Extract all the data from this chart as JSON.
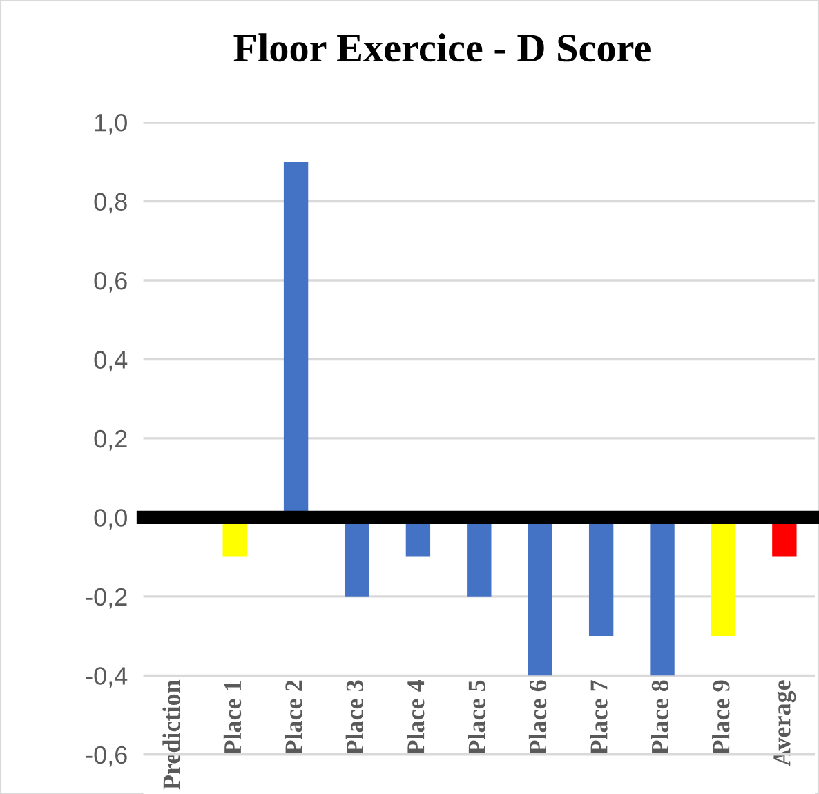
{
  "chart_data": {
    "type": "bar",
    "title": "Floor Exercice - D Score",
    "categories": [
      "Prediction",
      "Place 1",
      "Place 2",
      "Place 3",
      "Place 4",
      "Place 5",
      "Place 6",
      "Place 7",
      "Place 8",
      "Place 9",
      "Average"
    ],
    "values": [
      null,
      -0.1,
      0.9,
      -0.2,
      -0.1,
      -0.2,
      -0.4,
      -0.3,
      -0.4,
      -0.3,
      -0.1
    ],
    "colors": [
      "#4472c4",
      "#ffff00",
      "#4472c4",
      "#4472c4",
      "#4472c4",
      "#4472c4",
      "#4472c4",
      "#4472c4",
      "#4472c4",
      "#ffff00",
      "#ff0000"
    ],
    "ylim": [
      -0.7,
      1.0
    ],
    "yticks": [
      {
        "value": -0.6,
        "label": "-0,6"
      },
      {
        "value": -0.4,
        "label": "-0,4"
      },
      {
        "value": -0.2,
        "label": "-0,2"
      },
      {
        "value": 0.0,
        "label": "0,0"
      },
      {
        "value": 0.2,
        "label": "0,2"
      },
      {
        "value": 0.4,
        "label": "0,4"
      },
      {
        "value": 0.6,
        "label": "0,6"
      },
      {
        "value": 0.8,
        "label": "0,8"
      },
      {
        "value": 1.0,
        "label": "1,0"
      }
    ],
    "grid": "y"
  }
}
